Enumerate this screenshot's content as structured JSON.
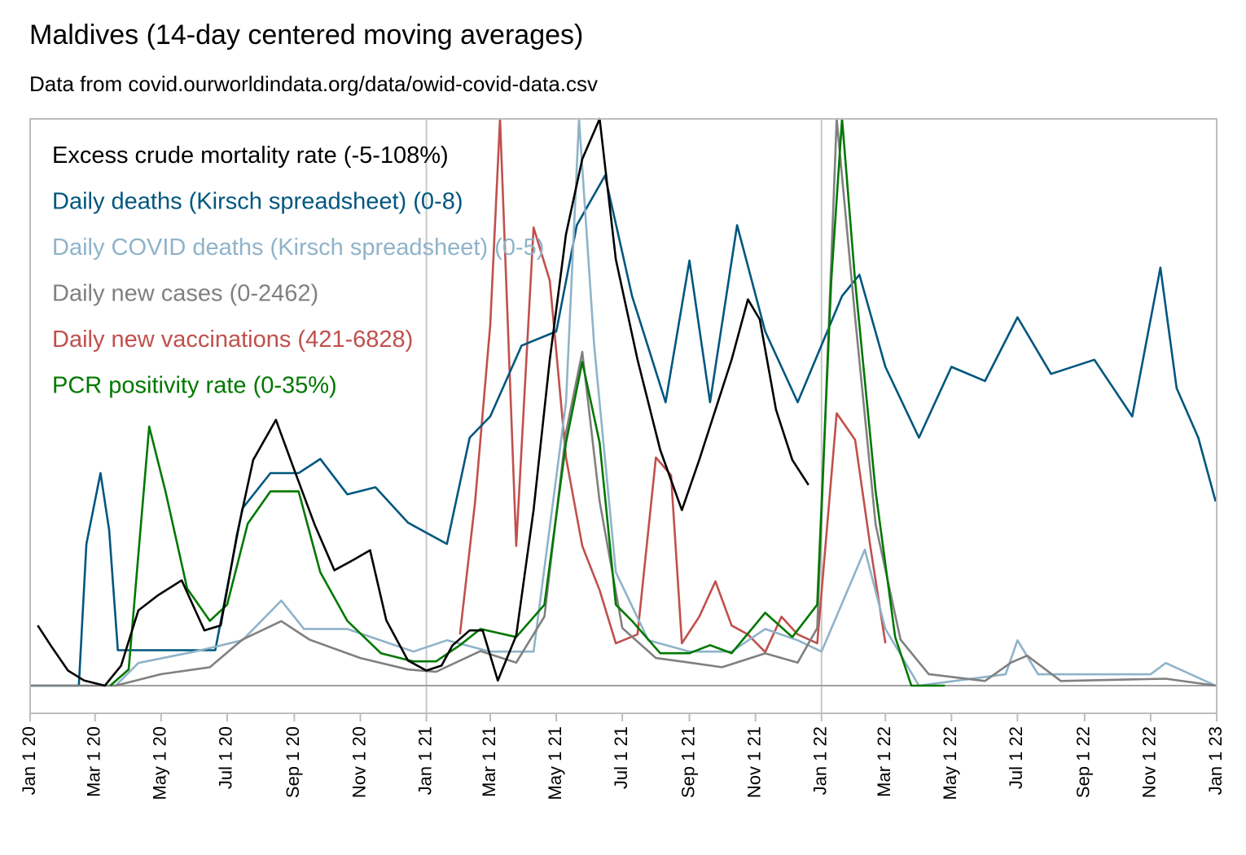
{
  "chart_data": {
    "type": "line",
    "title": "Maldives (14-day centered moving averages)",
    "subtitle": "Data from covid.ourworldindata.org/data/owid-covid-data.csv",
    "xlabel": "",
    "ylabel": "",
    "xlim": [
      "2020-01-01",
      "2023-01-01"
    ],
    "x_ticks": [
      "Jan 1 20",
      "Mar 1 20",
      "May 1 20",
      "Jul 1 20",
      "Sep 1 20",
      "Nov 1 20",
      "Jan 1 21",
      "Mar 1 21",
      "May 1 21",
      "Jul 1 21",
      "Sep 1 21",
      "Nov 1 21",
      "Jan 1 22",
      "Mar 1 22",
      "May 1 22",
      "Jul 1 22",
      "Sep 1 22",
      "Nov 1 22",
      "Jan 1 23"
    ],
    "x_tick_dates": [
      "2020-01-01",
      "2020-03-01",
      "2020-05-01",
      "2020-07-01",
      "2020-09-01",
      "2020-11-01",
      "2021-01-01",
      "2021-03-01",
      "2021-05-01",
      "2021-07-01",
      "2021-09-01",
      "2021-11-01",
      "2022-01-01",
      "2022-03-01",
      "2022-05-01",
      "2022-07-01",
      "2022-09-01",
      "2022-11-01",
      "2023-01-01"
    ],
    "vertical_gridlines": [
      "2021-01-01",
      "2022-01-01"
    ],
    "legend_position": "top-left",
    "y_note": "each series rescaled so its min/max (shown in legend label) span the plot height",
    "series": [
      {
        "name": "Excess crude mortality rate (-5-108%)",
        "color": "#000000",
        "range": [
          -5,
          108
        ],
        "points": [
          [
            "2020-01-08",
            7
          ],
          [
            "2020-01-20",
            3
          ],
          [
            "2020-02-05",
            -2
          ],
          [
            "2020-02-20",
            -4
          ],
          [
            "2020-03-10",
            -5
          ],
          [
            "2020-03-25",
            -1
          ],
          [
            "2020-04-10",
            10
          ],
          [
            "2020-04-28",
            13
          ],
          [
            "2020-05-20",
            16
          ],
          [
            "2020-06-10",
            6
          ],
          [
            "2020-06-25",
            7
          ],
          [
            "2020-07-10",
            25
          ],
          [
            "2020-07-25",
            40
          ],
          [
            "2020-08-15",
            48
          ],
          [
            "2020-09-01",
            38
          ],
          [
            "2020-09-20",
            27
          ],
          [
            "2020-10-08",
            18
          ],
          [
            "2020-10-25",
            20
          ],
          [
            "2020-11-10",
            22
          ],
          [
            "2020-11-25",
            8
          ],
          [
            "2020-12-15",
            0
          ],
          [
            "2021-01-01",
            -2
          ],
          [
            "2021-01-15",
            -1
          ],
          [
            "2021-01-25",
            3
          ],
          [
            "2021-02-10",
            6
          ],
          [
            "2021-02-22",
            6
          ],
          [
            "2021-03-08",
            -4
          ],
          [
            "2021-03-25",
            5
          ],
          [
            "2021-04-10",
            30
          ],
          [
            "2021-04-25",
            60
          ],
          [
            "2021-05-10",
            85
          ],
          [
            "2021-05-25",
            100
          ],
          [
            "2021-06-10",
            108
          ],
          [
            "2021-06-25",
            80
          ],
          [
            "2021-07-15",
            60
          ],
          [
            "2021-08-05",
            42
          ],
          [
            "2021-08-25",
            30
          ],
          [
            "2021-09-10",
            40
          ],
          [
            "2021-09-25",
            50
          ],
          [
            "2021-10-10",
            60
          ],
          [
            "2021-10-25",
            72
          ],
          [
            "2021-11-05",
            68
          ],
          [
            "2021-11-20",
            50
          ],
          [
            "2021-12-05",
            40
          ],
          [
            "2021-12-20",
            35
          ]
        ]
      },
      {
        "name": "Daily deaths (Kirsch spreadsheet) (0-8)",
        "color": "#01567F",
        "range": [
          0,
          8
        ],
        "points": [
          [
            "2020-01-01",
            0
          ],
          [
            "2020-02-15",
            0
          ],
          [
            "2020-02-22",
            2
          ],
          [
            "2020-03-06",
            3
          ],
          [
            "2020-03-14",
            2.2
          ],
          [
            "2020-03-22",
            0.5
          ],
          [
            "2020-04-20",
            0.5
          ],
          [
            "2020-05-10",
            0.5
          ],
          [
            "2020-06-20",
            0.5
          ],
          [
            "2020-07-15",
            2.5
          ],
          [
            "2020-08-10",
            3
          ],
          [
            "2020-09-05",
            3
          ],
          [
            "2020-09-25",
            3.2
          ],
          [
            "2020-10-20",
            2.7
          ],
          [
            "2020-11-15",
            2.8
          ],
          [
            "2020-12-15",
            2.3
          ],
          [
            "2021-01-20",
            2
          ],
          [
            "2021-02-10",
            3.5
          ],
          [
            "2021-03-01",
            3.8
          ],
          [
            "2021-03-30",
            4.8
          ],
          [
            "2021-05-01",
            5
          ],
          [
            "2021-05-20",
            6.5
          ],
          [
            "2021-06-15",
            7.2
          ],
          [
            "2021-07-10",
            5.5
          ],
          [
            "2021-08-10",
            4
          ],
          [
            "2021-09-01",
            6
          ],
          [
            "2021-09-20",
            4
          ],
          [
            "2021-10-15",
            6.5
          ],
          [
            "2021-11-10",
            5
          ],
          [
            "2021-12-10",
            4
          ],
          [
            "2022-01-20",
            5.5
          ],
          [
            "2022-02-05",
            5.8
          ],
          [
            "2022-03-01",
            4.5
          ],
          [
            "2022-04-01",
            3.5
          ],
          [
            "2022-05-01",
            4.5
          ],
          [
            "2022-06-01",
            4.3
          ],
          [
            "2022-07-01",
            5.2
          ],
          [
            "2022-08-01",
            4.4
          ],
          [
            "2022-09-10",
            4.6
          ],
          [
            "2022-10-15",
            3.8
          ],
          [
            "2022-11-10",
            5.9
          ],
          [
            "2022-11-25",
            4.2
          ],
          [
            "2022-12-15",
            3.5
          ],
          [
            "2022-12-31",
            2.6
          ]
        ]
      },
      {
        "name": "Daily COVID deaths (Kirsch spreadsheet) (0-5)",
        "color": "#8FB3C9",
        "range": [
          0,
          5
        ],
        "points": [
          [
            "2020-03-20",
            0
          ],
          [
            "2020-04-10",
            0.2
          ],
          [
            "2020-06-01",
            0.3
          ],
          [
            "2020-07-15",
            0.4
          ],
          [
            "2020-08-20",
            0.75
          ],
          [
            "2020-09-10",
            0.5
          ],
          [
            "2020-10-20",
            0.5
          ],
          [
            "2020-12-20",
            0.3
          ],
          [
            "2021-01-20",
            0.4
          ],
          [
            "2021-03-01",
            0.3
          ],
          [
            "2021-04-10",
            0.3
          ],
          [
            "2021-05-10",
            2.5
          ],
          [
            "2021-05-22",
            5
          ],
          [
            "2021-06-05",
            3
          ],
          [
            "2021-06-25",
            1
          ],
          [
            "2021-07-25",
            0.4
          ],
          [
            "2021-09-01",
            0.3
          ],
          [
            "2021-10-10",
            0.3
          ],
          [
            "2021-11-10",
            0.5
          ],
          [
            "2021-12-10",
            0.4
          ],
          [
            "2022-01-01",
            0.3
          ],
          [
            "2022-02-10",
            1.2
          ],
          [
            "2022-03-01",
            0.5
          ],
          [
            "2022-04-01",
            0
          ],
          [
            "2022-06-20",
            0.1
          ],
          [
            "2022-07-01",
            0.4
          ],
          [
            "2022-07-20",
            0.1
          ],
          [
            "2022-11-01",
            0.1
          ],
          [
            "2022-11-15",
            0.2
          ],
          [
            "2022-12-31",
            0
          ]
        ]
      },
      {
        "name": "Daily new cases (0-2462)",
        "color": "#808080",
        "range": [
          0,
          2462
        ],
        "points": [
          [
            "2020-01-01",
            0
          ],
          [
            "2020-03-20",
            0
          ],
          [
            "2020-05-01",
            50
          ],
          [
            "2020-06-15",
            80
          ],
          [
            "2020-07-15",
            200
          ],
          [
            "2020-08-20",
            280
          ],
          [
            "2020-09-15",
            200
          ],
          [
            "2020-11-01",
            120
          ],
          [
            "2020-12-15",
            70
          ],
          [
            "2021-01-10",
            60
          ],
          [
            "2021-02-20",
            150
          ],
          [
            "2021-03-25",
            100
          ],
          [
            "2021-04-20",
            300
          ],
          [
            "2021-05-10",
            1100
          ],
          [
            "2021-05-25",
            1450
          ],
          [
            "2021-06-10",
            800
          ],
          [
            "2021-07-01",
            250
          ],
          [
            "2021-08-01",
            120
          ],
          [
            "2021-09-01",
            100
          ],
          [
            "2021-10-01",
            80
          ],
          [
            "2021-11-10",
            140
          ],
          [
            "2021-12-10",
            100
          ],
          [
            "2021-12-28",
            250
          ],
          [
            "2022-01-15",
            2462
          ],
          [
            "2022-02-01",
            1600
          ],
          [
            "2022-02-20",
            700
          ],
          [
            "2022-03-15",
            200
          ],
          [
            "2022-04-10",
            50
          ],
          [
            "2022-06-01",
            20
          ],
          [
            "2022-06-25",
            100
          ],
          [
            "2022-07-10",
            130
          ],
          [
            "2022-08-10",
            20
          ],
          [
            "2022-11-15",
            30
          ],
          [
            "2022-12-31",
            0
          ]
        ]
      },
      {
        "name": "Daily new vaccinations (421-6828)",
        "color": "#C0504D",
        "range": [
          421,
          6828
        ],
        "points": [
          [
            "2021-02-01",
            1000
          ],
          [
            "2021-02-15",
            2500
          ],
          [
            "2021-03-01",
            4500
          ],
          [
            "2021-03-10",
            6828
          ],
          [
            "2021-03-25",
            2000
          ],
          [
            "2021-04-10",
            5600
          ],
          [
            "2021-04-25",
            5000
          ],
          [
            "2021-05-10",
            3000
          ],
          [
            "2021-05-25",
            2000
          ],
          [
            "2021-06-10",
            1500
          ],
          [
            "2021-06-25",
            900
          ],
          [
            "2021-07-15",
            1000
          ],
          [
            "2021-08-01",
            3000
          ],
          [
            "2021-08-15",
            2800
          ],
          [
            "2021-08-25",
            900
          ],
          [
            "2021-09-10",
            1200
          ],
          [
            "2021-09-25",
            1600
          ],
          [
            "2021-10-10",
            1100
          ],
          [
            "2021-10-25",
            1000
          ],
          [
            "2021-11-10",
            800
          ],
          [
            "2021-11-25",
            1200
          ],
          [
            "2021-12-10",
            1000
          ],
          [
            "2021-12-28",
            900
          ],
          [
            "2022-01-15",
            3500
          ],
          [
            "2022-02-01",
            3200
          ],
          [
            "2022-02-15",
            2000
          ],
          [
            "2022-03-01",
            900
          ]
        ]
      },
      {
        "name": "PCR positivity rate (0-35%)",
        "color": "#007800",
        "range": [
          0,
          35
        ],
        "points": [
          [
            "2020-03-15",
            0
          ],
          [
            "2020-04-01",
            1
          ],
          [
            "2020-04-20",
            16
          ],
          [
            "2020-05-05",
            12
          ],
          [
            "2020-05-25",
            6
          ],
          [
            "2020-06-15",
            4
          ],
          [
            "2020-07-01",
            5
          ],
          [
            "2020-07-20",
            10
          ],
          [
            "2020-08-10",
            12
          ],
          [
            "2020-09-05",
            12
          ],
          [
            "2020-09-25",
            7
          ],
          [
            "2020-10-20",
            4
          ],
          [
            "2020-11-20",
            2
          ],
          [
            "2020-12-20",
            1.5
          ],
          [
            "2021-01-10",
            1.5
          ],
          [
            "2021-02-01",
            2.5
          ],
          [
            "2021-02-20",
            3.5
          ],
          [
            "2021-03-25",
            3
          ],
          [
            "2021-04-20",
            5
          ],
          [
            "2021-05-10",
            15
          ],
          [
            "2021-05-25",
            20
          ],
          [
            "2021-06-10",
            15
          ],
          [
            "2021-06-25",
            5
          ],
          [
            "2021-07-10",
            4
          ],
          [
            "2021-08-05",
            2
          ],
          [
            "2021-09-01",
            2
          ],
          [
            "2021-09-20",
            2.5
          ],
          [
            "2021-10-10",
            2
          ],
          [
            "2021-11-10",
            4.5
          ],
          [
            "2021-12-05",
            3
          ],
          [
            "2021-12-28",
            5
          ],
          [
            "2022-01-10",
            25
          ],
          [
            "2022-01-20",
            35
          ],
          [
            "2022-02-01",
            25
          ],
          [
            "2022-02-20",
            12
          ],
          [
            "2022-03-10",
            3
          ],
          [
            "2022-03-25",
            0
          ],
          [
            "2022-04-25",
            0
          ]
        ]
      }
    ]
  }
}
